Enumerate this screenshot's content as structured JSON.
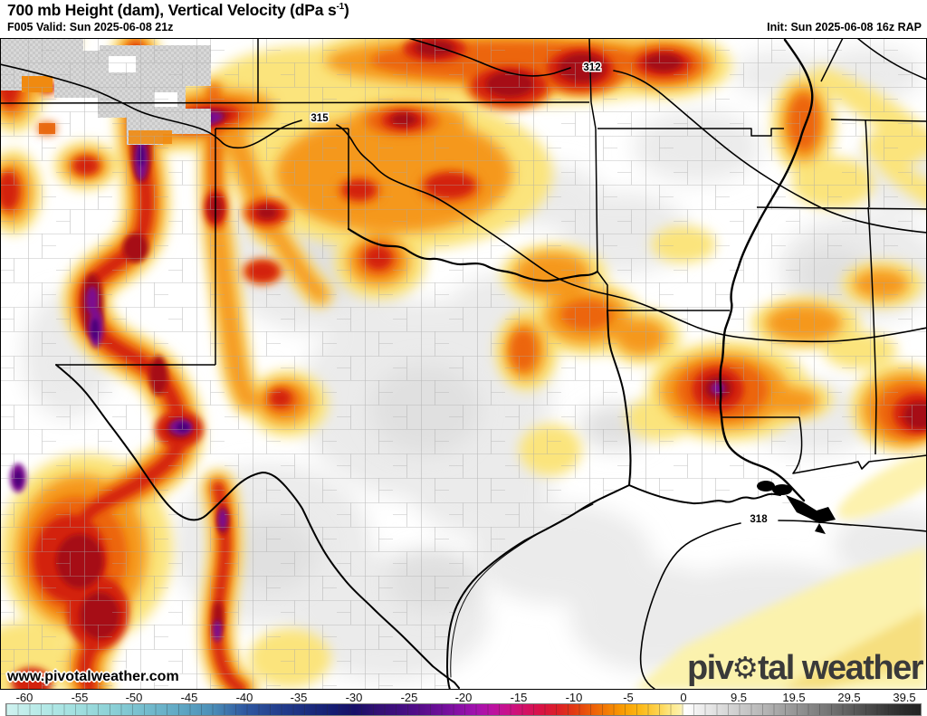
{
  "header": {
    "title_pre": "700 mb Height (dam), Vertical Velocity (dPa s",
    "title_sup": "-1",
    "title_post": ")",
    "valid": "F005 Valid: Sun 2025-06-08 21z",
    "init": "Init: Sun 2025-06-08 16z RAP"
  },
  "map": {
    "watermark": "www.pivotalweather.com",
    "logo": {
      "pre": "piv",
      "gear": "⚙",
      "post": "tal weather"
    },
    "contours": [
      {
        "value": "312"
      },
      {
        "value": "315"
      },
      {
        "value": "318"
      }
    ]
  },
  "chart_data": {
    "type": "heatmap",
    "title": "700 mb Height (dam), Vertical Velocity (dPa s-1)",
    "model": "RAP",
    "forecast_hour": "F005",
    "valid_time": "Sun 2025-06-08 21z",
    "init_time": "Sun 2025-06-08 16z",
    "height_contour_values_dam": [
      312,
      315,
      318
    ],
    "colorbar_unit": "dPa s-1",
    "colorbar_ticks": [
      "-60",
      "-55",
      "-50",
      "-45",
      "-40",
      "-35",
      "-30",
      "-25",
      "-20",
      "-15",
      "-10",
      "-5",
      "0",
      "9.5",
      "19.5",
      "29.5",
      "39.5"
    ],
    "colorbar_stops": [
      [
        -61.7,
        "#cff2ef"
      ],
      [
        -58,
        "#b2e8e6"
      ],
      [
        -55,
        "#9fdede"
      ],
      [
        -52,
        "#8bd0d6"
      ],
      [
        -49,
        "#74bccd"
      ],
      [
        -46,
        "#60a8c4"
      ],
      [
        -43,
        "#4c8fb8"
      ],
      [
        -40,
        "#2f58a0"
      ],
      [
        -37,
        "#233f8e"
      ],
      [
        -34,
        "#1a2a7d"
      ],
      [
        -32,
        "#151d72"
      ],
      [
        -30,
        "#170f68"
      ],
      [
        -28,
        "#321073"
      ],
      [
        -26,
        "#400e80"
      ],
      [
        -24,
        "#570d8b"
      ],
      [
        -22,
        "#700f9a"
      ],
      [
        -20.5,
        "#8810a5"
      ],
      [
        -19,
        "#a212ae"
      ],
      [
        -17.5,
        "#ba12a2"
      ],
      [
        -16,
        "#c91189"
      ],
      [
        -14.5,
        "#d31166"
      ],
      [
        -13,
        "#d91244"
      ],
      [
        -11.5,
        "#dc1f27"
      ],
      [
        -10,
        "#e23a12"
      ],
      [
        -8.5,
        "#ec5c09"
      ],
      [
        -7,
        "#f37d04"
      ],
      [
        -5.5,
        "#f99e02"
      ],
      [
        -4.2,
        "#fcb612"
      ],
      [
        -3,
        "#fdc93a"
      ],
      [
        -2,
        "#fdd95e"
      ],
      [
        -1.2,
        "#fde88a"
      ],
      [
        -0.4,
        "#fdf0a8"
      ],
      [
        -0.05,
        "#fefbe2"
      ],
      [
        0,
        "#ffffff"
      ],
      [
        1,
        "#fbfbfb"
      ],
      [
        2.25,
        "#f1f1f1"
      ],
      [
        4.75,
        "#e5e5e5"
      ],
      [
        7,
        "#dadada"
      ],
      [
        9.5,
        "#cecece"
      ],
      [
        12,
        "#c1c1c1"
      ],
      [
        14.5,
        "#b4b4b4"
      ],
      [
        17,
        "#a6a6a6"
      ],
      [
        19.5,
        "#989898"
      ],
      [
        22,
        "#8a8a8a"
      ],
      [
        24.5,
        "#7c7c7c"
      ],
      [
        27,
        "#6e6e6e"
      ],
      [
        29.5,
        "#5f5f5f"
      ],
      [
        32,
        "#515151"
      ],
      [
        34.5,
        "#434343"
      ],
      [
        37,
        "#363636"
      ],
      [
        39.5,
        "#2b2b2b"
      ],
      [
        42.5,
        "#222222"
      ]
    ]
  }
}
